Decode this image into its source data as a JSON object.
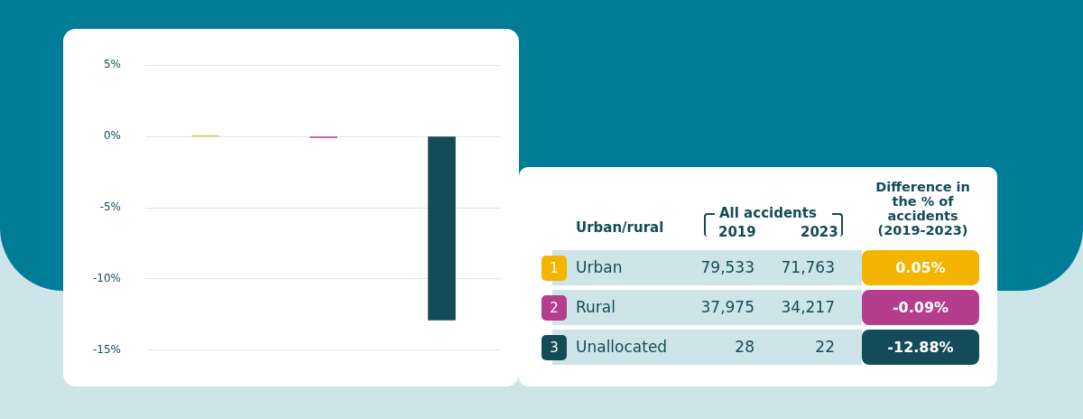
{
  "chart_data": {
    "type": "bar",
    "categories": [
      null,
      null,
      null
    ],
    "values": [
      0.05,
      -0.09,
      -12.88
    ],
    "colors": [
      "#f5b400",
      "#b53d8e",
      "#134c58"
    ],
    "ylim": [
      -15,
      5
    ],
    "yticks": [
      {
        "value": 5,
        "label": "5%"
      },
      {
        "value": 0,
        "label": "0%"
      },
      {
        "value": -5,
        "label": "-5%"
      },
      {
        "value": -10,
        "label": "-10%"
      },
      {
        "value": -15,
        "label": "-15%"
      }
    ],
    "grid": "y",
    "tick_labels": "y",
    "annotations": [
      "Urban/rural",
      "All accidents",
      "2019",
      "2023",
      "Difference in the % of accidents (2019-2023)",
      "1",
      "Urban",
      "79,533",
      "71,763",
      "0.05%",
      "2",
      "Rural",
      "37,975",
      "34,217",
      "-0.09%",
      "3",
      "Unallocated",
      "28",
      "22",
      "-12.88%"
    ]
  }
}
